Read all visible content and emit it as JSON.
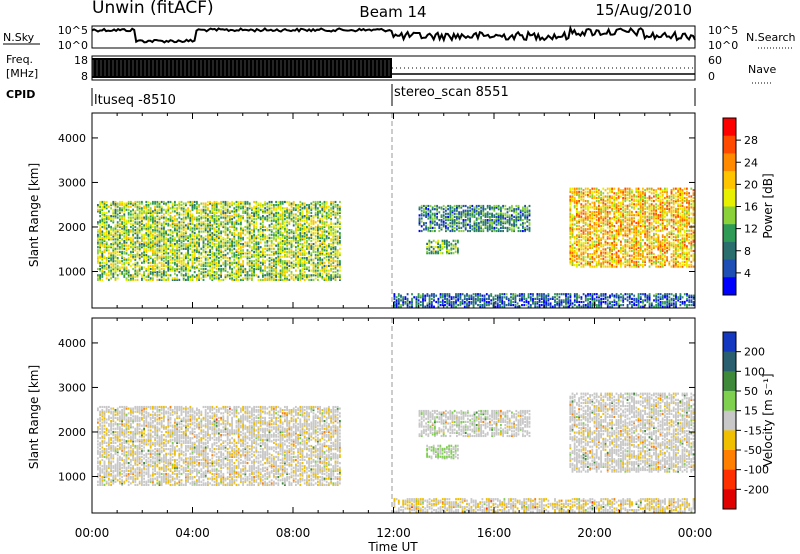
{
  "header": {
    "station": "Unwin (fitACF)",
    "beam": "Beam 14",
    "date": "15/Aug/2010"
  },
  "noise_panel": {
    "left_label": "N.Sky",
    "right_label": "N.Search",
    "left_ticks": [
      "10^5",
      "10^0"
    ],
    "right_ticks": [
      "10^5",
      "10^0"
    ]
  },
  "freq_panel": {
    "left_label_line1": "Freq.",
    "left_label_line2": "[MHz]",
    "left_ticks": [
      "18",
      "8"
    ],
    "right_label": "Nave",
    "right_ticks": [
      "60",
      "0"
    ]
  },
  "cpid": {
    "label": "CPID",
    "entries": [
      {
        "name": "ltuseq -8510",
        "start_hour": 0,
        "end_hour": 12
      },
      {
        "name": "stereo_scan 8551",
        "start_hour": 12,
        "end_hour": 24
      }
    ]
  },
  "power_panel": {
    "ylabel": "Slant Range [km]",
    "cbar_label": "Power [dB]",
    "cbar_ticks": [
      "28",
      "24",
      "20",
      "16",
      "12",
      "8",
      "4"
    ],
    "cbar_colors": [
      "#ff0000",
      "#ff4a00",
      "#ff8a00",
      "#ffc400",
      "#e6f000",
      "#8ad13a",
      "#2e9a55",
      "#2a6e6e",
      "#1f4fb4",
      "#0000ff"
    ]
  },
  "velocity_panel": {
    "ylabel": "Slant Range [km]",
    "cbar_label": "Velocity [m s⁻¹]",
    "cbar_ticks": [
      "200",
      "100",
      "50",
      "15",
      "-15",
      "-50",
      "-100",
      "-200"
    ],
    "cbar_colors": [
      "#1538c0",
      "#2a5f70",
      "#3f8a3a",
      "#80d050",
      "#c8c8c8",
      "#f0c000",
      "#ff8000",
      "#ff3000",
      "#e00000"
    ]
  },
  "y_ticks": [
    "4000",
    "3000",
    "2000",
    "1000"
  ],
  "x_ticks": [
    "00:00",
    "04:00",
    "08:00",
    "12:00",
    "16:00",
    "20:00",
    "00:00"
  ],
  "xlabel": "Time UT",
  "chart_data": {
    "type": "heatmap",
    "x_unit": "hours UT",
    "x_range": [
      0,
      24
    ],
    "y_range_km": [
      180,
      4560
    ],
    "y_ticks_km": [
      1000,
      2000,
      3000,
      4000
    ],
    "cpid_change_hour": 12,
    "power_scale_db": [
      0,
      30
    ],
    "velocity_scale_ms": [
      -250,
      250
    ],
    "echo_regions": [
      {
        "region": "early broad scatter",
        "t_start": 0.2,
        "t_end": 9.9,
        "range_km": [
          800,
          2600
        ],
        "power_db": 14,
        "velocity_ms": -10
      },
      {
        "region": "ground scatter",
        "t_start": 12.0,
        "t_end": 24.0,
        "range_km": [
          200,
          500
        ],
        "power_db": 5,
        "velocity_ms": -20
      },
      {
        "region": "midday band",
        "t_start": 13.0,
        "t_end": 17.5,
        "range_km": [
          1900,
          2500
        ],
        "power_db": 8,
        "velocity_ms": 5
      },
      {
        "region": "small patch",
        "t_start": 13.3,
        "t_end": 14.6,
        "range_km": [
          1400,
          1700
        ],
        "power_db": 12,
        "velocity_ms": 30
      },
      {
        "region": "evening scatter",
        "t_start": 19.0,
        "t_end": 24.0,
        "range_km": [
          1100,
          2900
        ],
        "power_db": 20,
        "velocity_ms": -5
      }
    ]
  }
}
